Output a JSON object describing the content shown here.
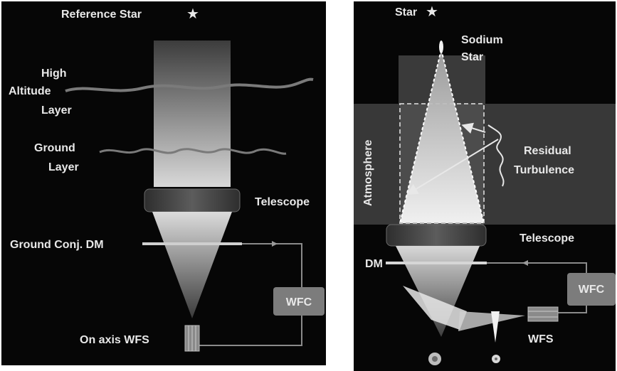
{
  "left_panel": {
    "reference_star_label": "Reference Star",
    "star_glyph": "★",
    "high_altitude_layer_label": [
      "High",
      "Altitude",
      "Layer"
    ],
    "ground_layer_label": [
      "Ground",
      "Layer"
    ],
    "telescope_label": "Telescope",
    "dm_label": "Ground Conj. DM",
    "wfc_label": "WFC",
    "wfs_label": "On axis WFS"
  },
  "right_panel": {
    "star_label": "Star",
    "star_glyph": "★",
    "sodium_star_label": [
      "Sodium",
      "Star"
    ],
    "atmosphere_label": "Atmosphere",
    "residual_turbulence_label": [
      "Residual",
      "Turbulence"
    ],
    "telescope_label": "Telescope",
    "dm_label": "DM",
    "wfc_label": "WFC",
    "wfs_label": "WFS"
  },
  "colors": {
    "panel_bg": "#060606",
    "text": "#e8e8e8",
    "layer_line": "#7a7a7a",
    "wfc_box": "#7c7c7c",
    "beam_light": "#e4e4e4",
    "beam_dark": "#4a4a4a"
  }
}
